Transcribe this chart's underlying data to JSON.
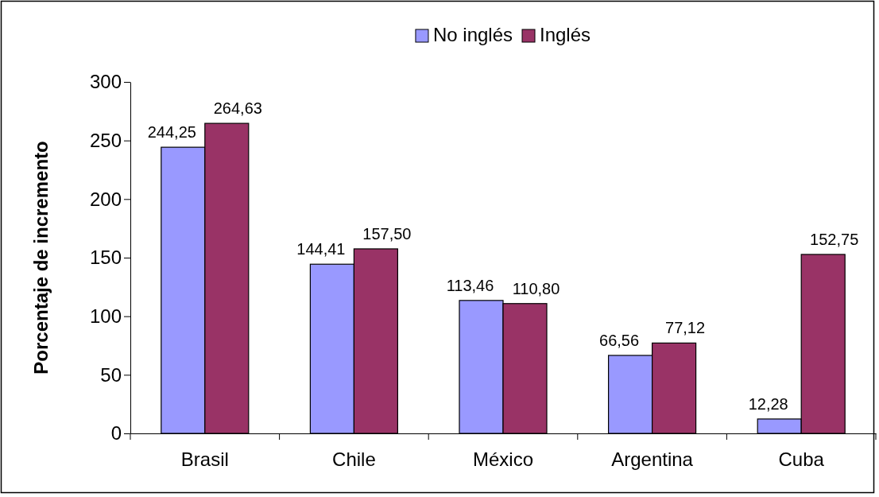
{
  "chart_data": {
    "type": "bar",
    "ylabel": "Porcentaje de incremento",
    "categories": [
      "Brasil",
      "Chile",
      "México",
      "Argentina",
      "Cuba"
    ],
    "series": [
      {
        "name": "No inglés",
        "color": "#9999ff",
        "values": [
          244.25,
          144.41,
          113.46,
          66.56,
          12.28
        ],
        "value_labels": [
          "244,25",
          "144,41",
          "113,46",
          "66,56",
          "12,28"
        ]
      },
      {
        "name": "Inglés",
        "color": "#993366",
        "values": [
          264.63,
          157.5,
          110.8,
          77.12,
          152.75
        ],
        "value_labels": [
          "264,63",
          "157,50",
          "110,80",
          "77,12",
          "152,75"
        ]
      }
    ],
    "ylim": [
      0,
      300
    ],
    "yticks": [
      0,
      50,
      100,
      150,
      200,
      250,
      300
    ],
    "grid": false,
    "legend": "top"
  }
}
